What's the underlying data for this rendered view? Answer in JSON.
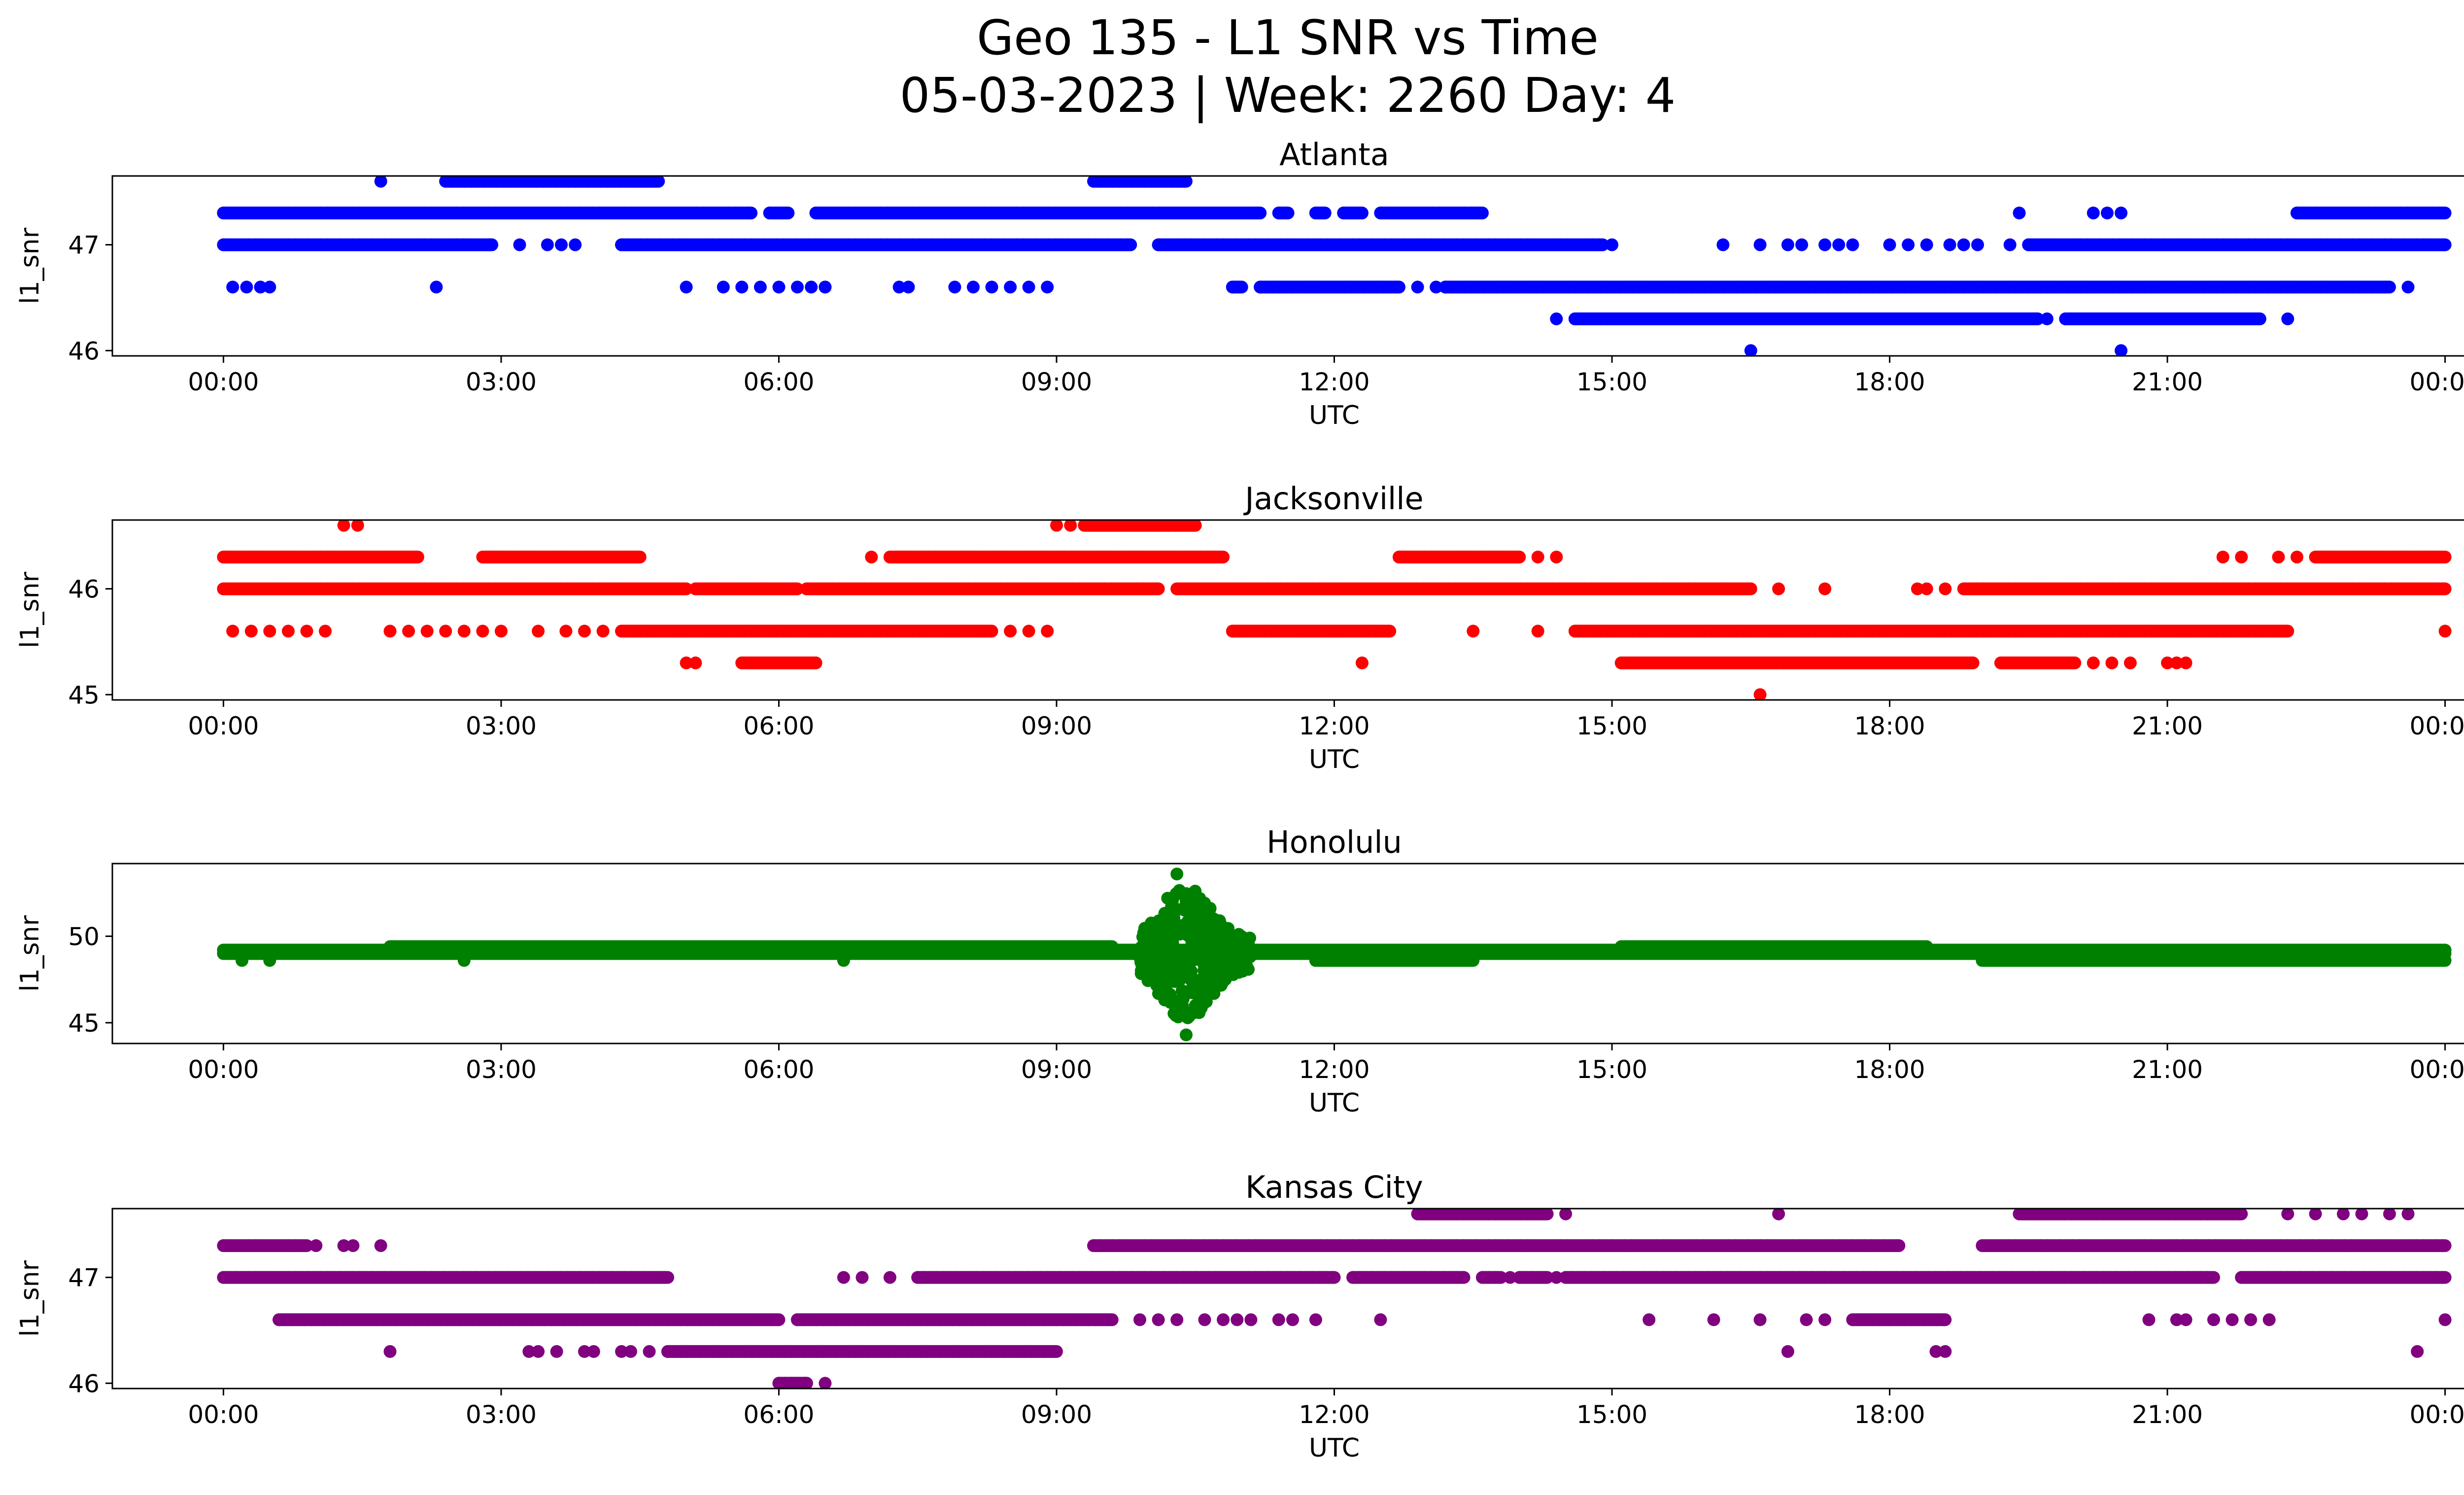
{
  "figure": {
    "title_line1": "Geo 135 - L1 SNR vs Time",
    "title_line2": "05-03-2023 | Week: 2260 Day: 4"
  },
  "chart_data": [
    {
      "type": "scatter",
      "title": "Atlanta",
      "xlabel": "UTC",
      "ylabel": "l1_snr",
      "color": "#0000ff",
      "x_ticks": [
        "00:00",
        "03:00",
        "06:00",
        "09:00",
        "12:00",
        "15:00",
        "18:00",
        "21:00",
        "00:00"
      ],
      "xlim": [
        -1.2,
        25.2
      ],
      "y_ticks": [
        46,
        47
      ],
      "ylim": [
        45.95,
        47.65
      ],
      "grid": false,
      "series": [
        {
          "value": 47.3,
          "ranges": [
            [
              0.0,
              5.7
            ],
            [
              5.9,
              6.1
            ],
            [
              6.4,
              11.2
            ],
            [
              11.4,
              11.5
            ],
            [
              11.8,
              11.9
            ],
            [
              12.1,
              12.3
            ],
            [
              12.5,
              13.6
            ],
            [
              22.4,
              24.0
            ]
          ],
          "points": [
            19.4,
            20.2,
            20.35,
            20.5
          ]
        },
        {
          "value": 47.0,
          "ranges": [
            [
              0.0,
              2.9
            ],
            [
              4.3,
              9.8
            ],
            [
              10.1,
              14.9
            ]
          ],
          "points": [
            3.2,
            3.5,
            3.65,
            3.8,
            15.0,
            16.2,
            16.6,
            16.9,
            17.05,
            17.3,
            17.45,
            17.6,
            18.0,
            18.2,
            18.4,
            18.65,
            18.8,
            18.95,
            19.3
          ],
          "ranges2": [
            [
              19.5,
              24.0
            ]
          ]
        },
        {
          "value": 46.6,
          "ranges": [
            [
              6.5,
              6.5
            ],
            [
              10.9,
              11.0
            ],
            [
              11.2,
              12.7
            ],
            [
              13.2,
              23.4
            ]
          ],
          "points": [
            0.1,
            0.25,
            0.4,
            0.5,
            2.3,
            5.0,
            5.4,
            5.6,
            5.8,
            6.0,
            6.2,
            6.35,
            7.3,
            7.4,
            7.9,
            8.1,
            8.3,
            8.5,
            8.7,
            8.9,
            12.9,
            13.1,
            23.6
          ]
        },
        {
          "value": 46.3,
          "ranges": [
            [
              14.6,
              19.6
            ],
            [
              19.9,
              22.0
            ]
          ],
          "points": [
            14.4,
            19.7,
            22.3
          ]
        },
        {
          "value": 47.6,
          "ranges": [
            [
              2.4,
              4.7
            ],
            [
              9.4,
              10.4
            ]
          ],
          "points": [
            1.7
          ]
        },
        {
          "value": 46.0,
          "ranges": [],
          "points": [
            16.5,
            20.5
          ]
        }
      ]
    },
    {
      "type": "scatter",
      "title": "Jacksonville",
      "xlabel": "UTC",
      "ylabel": "l1_snr",
      "color": "#ff0000",
      "x_ticks": [
        "00:00",
        "03:00",
        "06:00",
        "09:00",
        "12:00",
        "15:00",
        "18:00",
        "21:00",
        "00:00"
      ],
      "xlim": [
        -1.2,
        25.2
      ],
      "y_ticks": [
        45,
        46
      ],
      "ylim": [
        44.95,
        46.65
      ],
      "grid": false,
      "series": [
        {
          "value": 46.3,
          "ranges": [
            [
              0.0,
              2.1
            ],
            [
              2.8,
              4.5
            ],
            [
              7.2,
              10.8
            ],
            [
              12.7,
              14.0
            ],
            [
              22.6,
              24.0
            ]
          ],
          "points": [
            7.0,
            14.2,
            14.4,
            21.6,
            21.8,
            22.2,
            22.4
          ]
        },
        {
          "value": 46.0,
          "ranges": [
            [
              0.0,
              5.0
            ],
            [
              5.1,
              6.2
            ],
            [
              6.3,
              10.1
            ],
            [
              10.3,
              16.5
            ],
            [
              18.8,
              24.0
            ]
          ],
          "points": [
            16.8,
            17.3,
            18.3,
            18.4,
            18.6
          ]
        },
        {
          "value": 45.6,
          "ranges": [
            [
              4.3,
              8.3
            ],
            [
              10.9,
              12.6
            ],
            [
              14.6,
              22.3
            ]
          ],
          "points": [
            0.1,
            0.3,
            0.5,
            0.7,
            0.9,
            1.1,
            1.8,
            2.0,
            2.2,
            2.4,
            2.6,
            2.8,
            3.0,
            3.4,
            3.7,
            3.9,
            4.1,
            8.5,
            8.7,
            8.9,
            13.5,
            14.2,
            24.0
          ]
        },
        {
          "value": 45.3,
          "ranges": [
            [
              5.6,
              6.4
            ],
            [
              15.1,
              18.9
            ],
            [
              19.2,
              20.0
            ]
          ],
          "points": [
            5.0,
            5.1,
            12.3,
            20.2,
            20.4,
            20.6,
            21.0,
            21.1,
            21.2
          ]
        },
        {
          "value": 46.6,
          "ranges": [
            [
              9.3,
              10.5
            ]
          ],
          "points": [
            1.3,
            1.45,
            9.0,
            9.15
          ]
        },
        {
          "value": 45.0,
          "ranges": [],
          "points": [
            16.6
          ]
        }
      ]
    },
    {
      "type": "scatter",
      "title": "Honolulu",
      "xlabel": "UTC",
      "ylabel": "l1_snr",
      "color": "#008000",
      "x_ticks": [
        "00:00",
        "03:00",
        "06:00",
        "09:00",
        "12:00",
        "15:00",
        "18:00",
        "21:00",
        "00:00"
      ],
      "xlim": [
        -1.2,
        25.2
      ],
      "y_ticks": [
        45,
        50
      ],
      "ylim": [
        43.8,
        54.2
      ],
      "grid": false,
      "series": [
        {
          "value": 49.0,
          "ranges": [
            [
              0.0,
              9.9
            ],
            [
              11.1,
              24.0
            ]
          ],
          "points": []
        },
        {
          "value": 49.4,
          "ranges": [
            [
              1.8,
              9.6
            ],
            [
              15.1,
              18.4
            ]
          ],
          "points": [
            5.3,
            8.6,
            9.3
          ]
        },
        {
          "value": 48.6,
          "ranges": [
            [
              11.8,
              13.5
            ],
            [
              19.0,
              24.0
            ]
          ],
          "points": [
            0.2,
            0.5,
            2.6,
            6.7
          ]
        },
        {
          "value": 49.2,
          "ranges": [
            [
              0.0,
              24.0
            ]
          ],
          "points": []
        }
      ],
      "burst": {
        "x_range": [
          9.9,
          11.1
        ],
        "y_range": [
          45.0,
          53.6
        ],
        "extremes": [
          [
            10.3,
            53.6
          ],
          [
            10.2,
            52.2
          ],
          [
            10.4,
            52.0
          ],
          [
            10.3,
            45.4
          ],
          [
            10.4,
            44.3
          ],
          [
            10.5,
            46.0
          ]
        ]
      }
    },
    {
      "type": "scatter",
      "title": "Kansas City",
      "xlabel": "UTC",
      "ylabel": "l1_snr",
      "color": "#800080",
      "x_ticks": [
        "00:00",
        "03:00",
        "06:00",
        "09:00",
        "12:00",
        "15:00",
        "18:00",
        "21:00",
        "00:00"
      ],
      "xlim": [
        -1.2,
        25.2
      ],
      "y_ticks": [
        46,
        47
      ],
      "ylim": [
        45.95,
        47.65
      ],
      "grid": false,
      "series": [
        {
          "value": 47.3,
          "ranges": [
            [
              0.0,
              0.9
            ],
            [
              9.4,
              18.1
            ],
            [
              19.0,
              24.0
            ]
          ],
          "points": [
            1.0,
            1.3,
            1.4,
            1.7
          ]
        },
        {
          "value": 47.0,
          "ranges": [
            [
              0.0,
              4.8
            ],
            [
              7.5,
              12.0
            ],
            [
              12.2,
              13.4
            ],
            [
              13.6,
              13.8
            ],
            [
              14.0,
              14.3
            ],
            [
              14.5,
              21.5
            ],
            [
              21.8,
              24.0
            ]
          ],
          "points": [
            6.7,
            6.9,
            7.2,
            13.9,
            14.4
          ]
        },
        {
          "value": 46.6,
          "ranges": [
            [
              0.6,
              6.0
            ],
            [
              6.2,
              9.6
            ],
            [
              17.6,
              18.6
            ]
          ],
          "points": [
            9.9,
            10.1,
            10.3,
            10.6,
            10.8,
            10.95,
            11.1,
            11.4,
            11.55,
            11.8,
            12.5,
            15.4,
            16.1,
            16.6,
            17.1,
            17.3,
            18.0,
            20.8,
            21.1,
            21.2,
            21.5,
            21.7,
            21.9,
            22.1,
            24.0
          ]
        },
        {
          "value": 46.3,
          "ranges": [
            [
              4.8,
              9.0
            ]
          ],
          "points": [
            1.8,
            3.3,
            3.4,
            3.6,
            3.9,
            4.0,
            4.3,
            4.4,
            4.6,
            16.9,
            18.5,
            18.6,
            23.7
          ]
        },
        {
          "value": 47.6,
          "ranges": [
            [
              12.9,
              14.3
            ],
            [
              19.4,
              21.8
            ]
          ],
          "points": [
            14.5,
            16.8,
            22.3,
            22.6,
            22.9,
            23.1,
            23.4,
            23.6
          ]
        },
        {
          "value": 46.0,
          "ranges": [
            [
              6.0,
              6.3
            ]
          ],
          "points": [
            6.5
          ]
        }
      ]
    }
  ]
}
